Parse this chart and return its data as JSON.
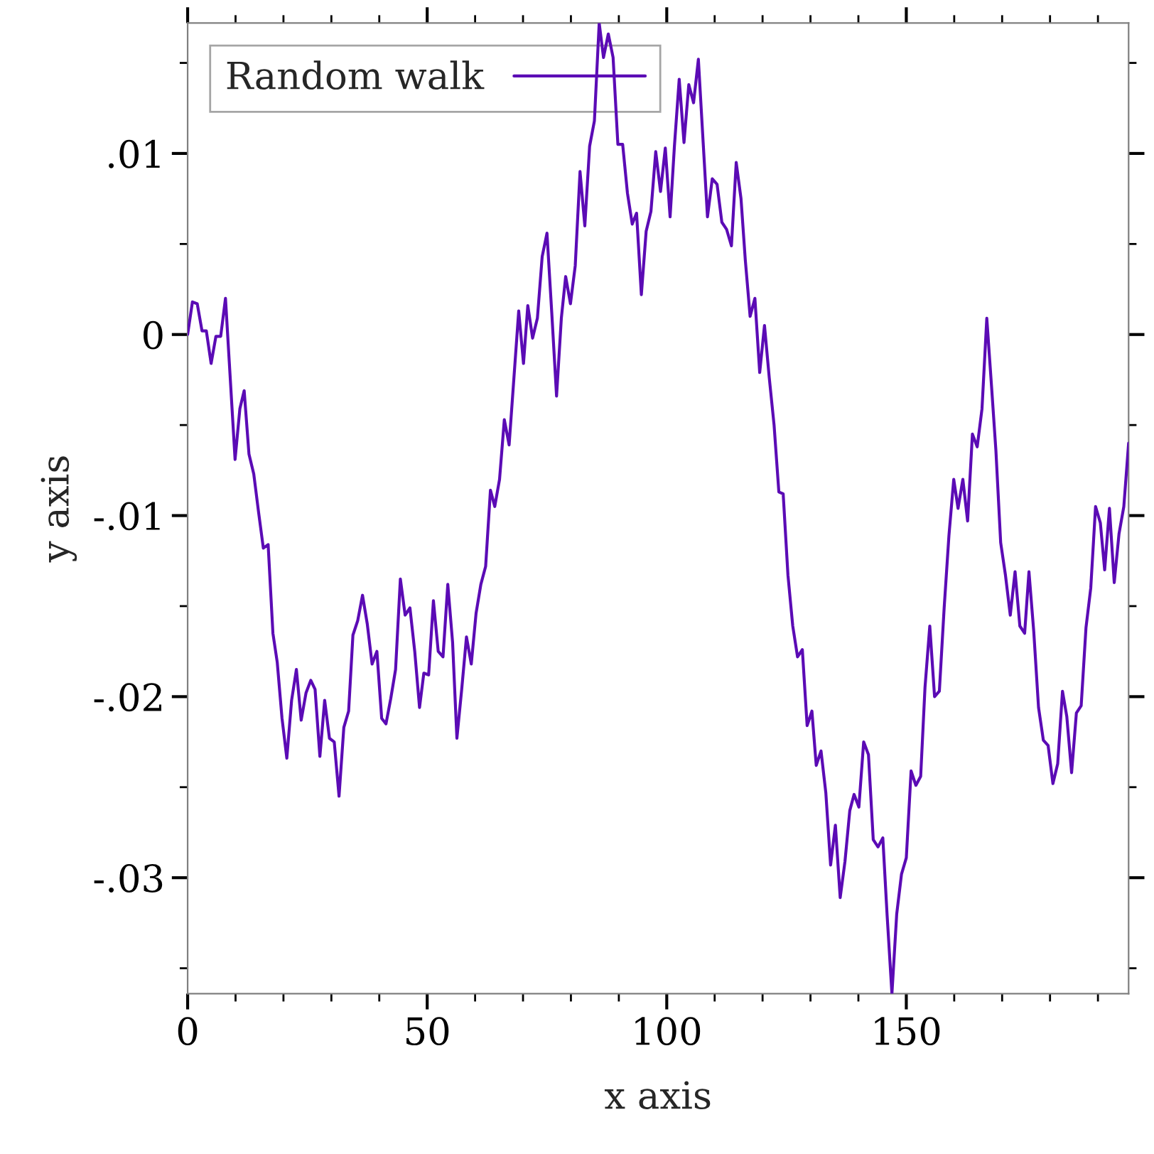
{
  "chart_data": {
    "type": "line",
    "xlabel": "x axis",
    "ylabel": "y axis",
    "x": [
      0,
      1.0,
      2.0,
      3.0,
      3.9,
      4.9,
      5.9,
      6.9,
      7.9,
      9.9,
      10.9,
      11.8,
      12.8,
      13.8,
      14.8,
      15.8,
      16.8,
      17.8,
      18.7,
      19.7,
      20.7,
      21.7,
      22.7,
      23.7,
      24.7,
      25.7,
      26.6,
      27.6,
      28.6,
      29.6,
      30.6,
      31.6,
      32.6,
      33.6,
      34.5,
      35.5,
      36.5,
      37.5,
      38.5,
      39.5,
      40.5,
      41.4,
      42.4,
      43.4,
      44.4,
      45.4,
      46.4,
      47.4,
      48.4,
      49.3,
      50.3,
      51.3,
      52.3,
      53.3,
      54.3,
      55.3,
      56.2,
      57.2,
      58.2,
      59.2,
      60.2,
      61.2,
      62.2,
      63.2,
      64.1,
      65.1,
      66.1,
      67.1,
      68.1,
      69.1,
      70.1,
      71.0,
      72.0,
      73.0,
      74.0,
      75.0,
      76.0,
      77.0,
      78.0,
      78.9,
      79.9,
      80.9,
      81.9,
      82.9,
      83.9,
      84.9,
      85.9,
      86.8,
      87.8,
      88.8,
      89.8,
      90.8,
      91.8,
      92.8,
      93.7,
      94.7,
      95.7,
      96.7,
      97.7,
      98.7,
      99.7,
      100.7,
      101.6,
      102.6,
      103.6,
      104.6,
      105.6,
      106.6,
      107.6,
      108.5,
      109.5,
      110.5,
      111.5,
      112.5,
      113.5,
      114.5,
      115.5,
      116.4,
      117.4,
      118.4,
      119.4,
      120.4,
      121.4,
      122.4,
      123.4,
      124.3,
      125.3,
      126.3,
      127.3,
      128.3,
      129.3,
      130.3,
      131.2,
      132.2,
      133.2,
      134.2,
      135.2,
      136.2,
      137.2,
      138.2,
      139.1,
      140.1,
      141.1,
      142.1,
      143.1,
      144.1,
      145.1,
      146.0,
      147.0,
      148.0,
      149.0,
      150.0,
      151.0,
      152.0,
      153.0,
      153.9,
      154.9,
      155.9,
      156.9,
      157.9,
      158.9,
      159.9,
      160.8,
      161.8,
      162.8,
      163.8,
      164.8,
      165.8,
      166.8,
      167.8,
      168.7,
      169.7,
      170.7,
      171.7,
      172.7,
      173.7,
      174.7,
      175.6,
      176.6,
      177.6,
      178.6,
      179.6,
      180.6,
      181.6,
      182.6,
      183.5,
      184.5,
      185.5,
      186.5,
      187.5,
      188.5,
      189.5,
      190.5,
      191.4,
      192.4,
      193.4,
      194.4,
      195.4,
      196.4
    ],
    "series": [
      {
        "name": "Random walk",
        "color": "#5b0bb5",
        "values": [
          0,
          0.0018,
          0.0017,
          0.0002,
          0.0002,
          -0.0016,
          -0.0001,
          -0.0001,
          0.002,
          -0.0069,
          -0.0041,
          -0.0031,
          -0.0066,
          -0.0077,
          -0.0098,
          -0.0118,
          -0.0116,
          -0.0165,
          -0.0181,
          -0.0212,
          -0.0234,
          -0.0202,
          -0.0185,
          -0.0213,
          -0.0198,
          -0.0191,
          -0.0196,
          -0.0233,
          -0.0202,
          -0.0223,
          -0.0225,
          -0.0255,
          -0.0217,
          -0.0208,
          -0.0166,
          -0.0158,
          -0.0144,
          -0.016,
          -0.0182,
          -0.0175,
          -0.0212,
          -0.0215,
          -0.0201,
          -0.0185,
          -0.0135,
          -0.0155,
          -0.0151,
          -0.0175,
          -0.0206,
          -0.0187,
          -0.0188,
          -0.0147,
          -0.0175,
          -0.0178,
          -0.0138,
          -0.017,
          -0.0223,
          -0.0196,
          -0.0167,
          -0.0182,
          -0.0154,
          -0.0138,
          -0.0128,
          -0.0086,
          -0.0095,
          -0.008,
          -0.0047,
          -0.0061,
          -0.0024,
          0.0013,
          -0.0016,
          0.0016,
          -0.0002,
          0.0009,
          0.0043,
          0.0056,
          0.0012,
          -0.0034,
          0.0009,
          0.0032,
          0.0017,
          0.0038,
          0.009,
          0.006,
          0.0104,
          0.0118,
          0.0172,
          0.0153,
          0.0166,
          0.0153,
          0.0105,
          0.0105,
          0.0078,
          0.0061,
          0.0067,
          0.0022,
          0.0057,
          0.0068,
          0.0101,
          0.0079,
          0.0103,
          0.0065,
          0.0104,
          0.0141,
          0.0106,
          0.0138,
          0.0128,
          0.0152,
          0.0106,
          0.0065,
          0.0086,
          0.0083,
          0.0062,
          0.0058,
          0.0049,
          0.0095,
          0.0075,
          0.0041,
          0.001,
          0.002,
          -0.0021,
          0.0005,
          -0.0024,
          -0.005,
          -0.0087,
          -0.0088,
          -0.0133,
          -0.0161,
          -0.0178,
          -0.0174,
          -0.0216,
          -0.0208,
          -0.0238,
          -0.023,
          -0.0253,
          -0.0293,
          -0.0271,
          -0.0311,
          -0.0291,
          -0.0263,
          -0.0254,
          -0.0261,
          -0.0225,
          -0.0232,
          -0.0279,
          -0.0283,
          -0.0278,
          -0.0321,
          -0.0364,
          -0.032,
          -0.0298,
          -0.0289,
          -0.0241,
          -0.0249,
          -0.0244,
          -0.0195,
          -0.0161,
          -0.02,
          -0.0197,
          -0.0151,
          -0.0111,
          -0.008,
          -0.0096,
          -0.008,
          -0.0103,
          -0.0055,
          -0.0062,
          -0.0041,
          0.0009,
          -0.0029,
          -0.0064,
          -0.0115,
          -0.0133,
          -0.0155,
          -0.0131,
          -0.0161,
          -0.0165,
          -0.0131,
          -0.0164,
          -0.0206,
          -0.0224,
          -0.0227,
          -0.0248,
          -0.0237,
          -0.0197,
          -0.0211,
          -0.0242,
          -0.0209,
          -0.0205,
          -0.0162,
          -0.014,
          -0.0095,
          -0.0104,
          -0.013,
          -0.0096,
          -0.0137,
          -0.011,
          -0.0095,
          -0.006
        ]
      }
    ],
    "xlim": [
      0,
      196.4
    ],
    "ylim": [
      -0.0364,
      0.0172
    ],
    "xticks": [
      0,
      {
        "value": 10,
        "label": null
      },
      {
        "value": 20,
        "label": null
      },
      {
        "value": 30,
        "label": null
      },
      {
        "value": 40,
        "label": null
      },
      50,
      {
        "value": 60,
        "label": null
      },
      {
        "value": 70,
        "label": null
      },
      {
        "value": 80,
        "label": null
      },
      {
        "value": 90,
        "label": null
      },
      100,
      {
        "value": 110,
        "label": null
      },
      {
        "value": 120,
        "label": null
      },
      {
        "value": 130,
        "label": null
      },
      {
        "value": 140,
        "label": null
      },
      150,
      {
        "value": 160,
        "label": null
      },
      {
        "value": 170,
        "label": null
      },
      {
        "value": 180,
        "label": null
      },
      {
        "value": 190,
        "label": null
      }
    ],
    "yticks": [
      {
        "value": -0.035,
        "label": null
      },
      {
        "value": -0.03,
        "label": "-.03"
      },
      {
        "value": -0.025,
        "label": null
      },
      {
        "value": -0.02,
        "label": "-.02"
      },
      {
        "value": -0.015,
        "label": null
      },
      {
        "value": -0.01,
        "label": "-.01"
      },
      {
        "value": -0.005,
        "label": null
      },
      0,
      {
        "value": 0.005,
        "label": null
      },
      {
        "value": 0.01,
        "label": ".01"
      },
      {
        "value": 0.015,
        "label": null
      }
    ],
    "grid": false,
    "legend": "top left",
    "line_style": "solid",
    "marker": "none"
  }
}
